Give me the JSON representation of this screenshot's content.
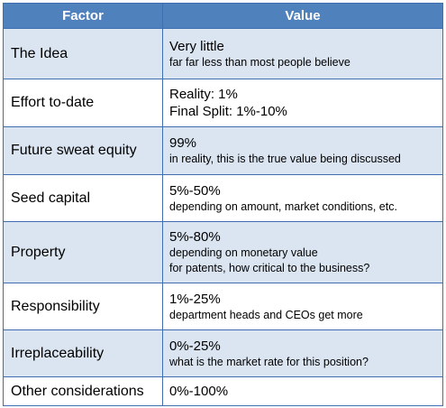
{
  "table": {
    "headers": {
      "factor": "Factor",
      "value": "Value"
    },
    "rows": [
      {
        "factor": "The Idea",
        "value": "Very little",
        "notes": [
          "far far less than most people believe"
        ]
      },
      {
        "factor": "Effort to-date",
        "value": "Reality: 1%",
        "notes": [],
        "value2": "Final Split: 1%-10%"
      },
      {
        "factor": "Future sweat equity",
        "value": "99%",
        "notes": [
          "in reality, this is the true value being discussed"
        ]
      },
      {
        "factor": "Seed capital",
        "value": "5%-50%",
        "notes": [
          "depending on amount, market conditions, etc."
        ]
      },
      {
        "factor": "Property",
        "value": "5%-80%",
        "notes": [
          "depending on monetary value",
          "for patents, how critical to the business?"
        ]
      },
      {
        "factor": "Responsibility",
        "value": "1%-25%",
        "notes": [
          "department heads and CEOs get more"
        ]
      },
      {
        "factor": "Irreplaceability",
        "value": "0%-25%",
        "notes": [
          "what is the market rate for this position?"
        ]
      },
      {
        "factor": "Other considerations",
        "value": "0%-100%",
        "notes": []
      }
    ]
  },
  "colors": {
    "header_bg": "#4f81bd",
    "row_alt_bg": "#dbe5f1",
    "border": "#3f6fb1"
  }
}
